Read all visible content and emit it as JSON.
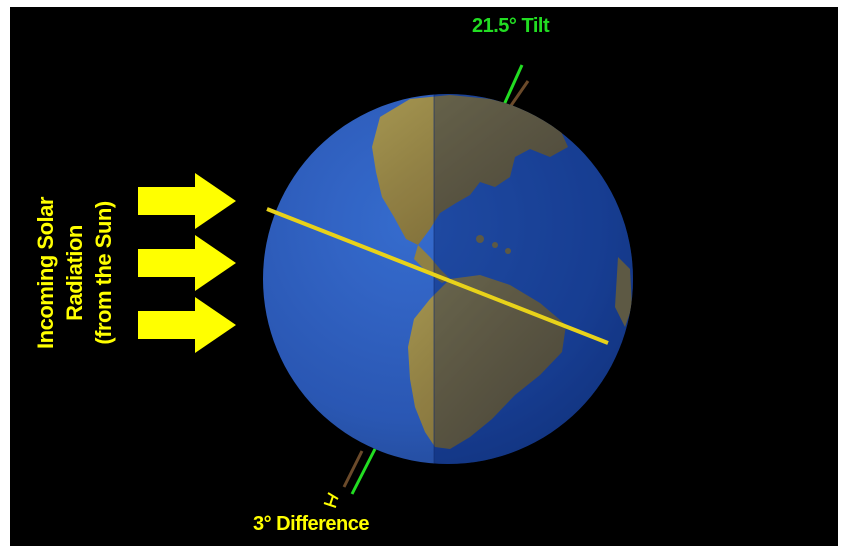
{
  "labels": {
    "tilt": "21.5° Tilt",
    "difference": "3° Difference",
    "radiation_line1": "Incoming Solar",
    "radiation_line2": "Radiation",
    "radiation_line3": "(from the Sun)"
  },
  "arrows": {
    "count": 3,
    "direction": "right",
    "color": "#ffff00"
  },
  "colors": {
    "background": "#000000",
    "ocean_day": "#1f4fb0",
    "ocean_night": "#16388a",
    "land": "#8a7a3a",
    "equator_line": "#e8d21a",
    "tilt_label": "#22dd22",
    "solar_label": "#ffff00",
    "axis_brown": "#6b4a2a"
  },
  "icons": [
    "arrow-right-icon",
    "earth-globe",
    "axis-line",
    "equator-line",
    "difference-bracket-icon"
  ]
}
